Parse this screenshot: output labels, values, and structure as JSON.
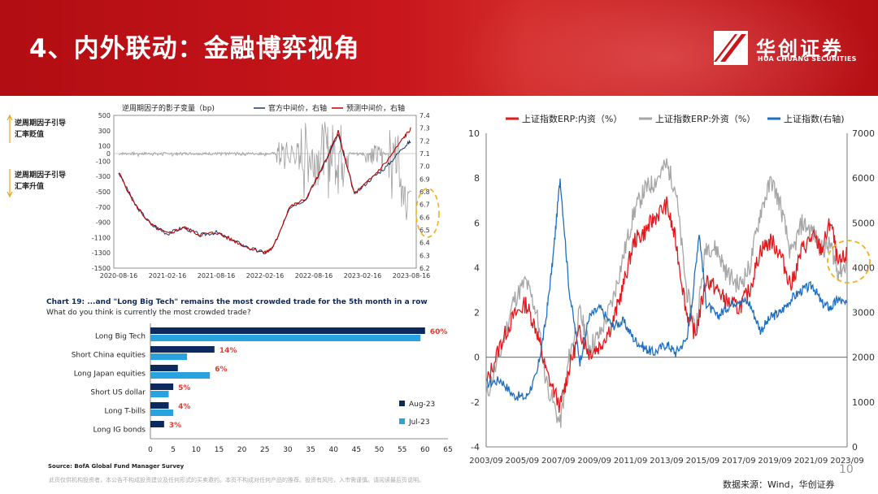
{
  "header": {
    "title": "4、内外联动：金融博弈视角",
    "logo_cn": "华创证券",
    "logo_en": "HUA CHUANG SECURITIES"
  },
  "page_number": "10",
  "disclaimer": "此页仅供机构投资者，本公告不构成投资建议及任何形式的买卖邀约。本页不构成对任何产品的推荐。投资有风险，入市需谨慎。请阅读最后页说明。",
  "chart1_side": {
    "up": "逆周期因子引导汇率贬值",
    "down": "逆周期因子引导汇率升值"
  },
  "chart_data": [
    {
      "type": "line",
      "legend": [
        "逆周期因子的影子变量（bp)",
        "官方中间价，右轴",
        "预测中间价，右轴"
      ],
      "x_ticks": [
        "2020-08-16",
        "2021-02-16",
        "2021-08-16",
        "2022-02-16",
        "2022-08-16",
        "2023-02-16",
        "2023-08-16"
      ],
      "y_left_ticks": [
        500,
        300,
        100,
        0,
        -100,
        -300,
        -500,
        -700,
        -900,
        -1100,
        -1300,
        -1500
      ],
      "y_right_ticks": [
        7.4,
        7.3,
        7.2,
        7.1,
        7.0,
        6.9,
        6.8,
        6.7,
        6.6,
        6.5,
        6.4,
        6.3,
        6.2
      ],
      "y_left_range": [
        -1500,
        500
      ],
      "y_right_range": [
        6.2,
        7.4
      ],
      "series": [
        {
          "name": "官方中间价，右轴",
          "color": "#1f3864",
          "x": [
            "2020-08",
            "2020-10",
            "2020-12",
            "2021-02",
            "2021-04",
            "2021-06",
            "2021-08",
            "2021-10",
            "2021-12",
            "2022-02",
            "2022-03",
            "2022-05",
            "2022-07",
            "2022-09",
            "2022-11",
            "2023-01",
            "2023-03",
            "2023-05",
            "2023-07",
            "2023-08"
          ],
          "values": [
            6.95,
            6.7,
            6.54,
            6.47,
            6.52,
            6.46,
            6.48,
            6.42,
            6.36,
            6.32,
            6.36,
            6.68,
            6.74,
            6.98,
            7.25,
            6.78,
            6.9,
            7.0,
            7.15,
            7.2
          ]
        },
        {
          "name": "预测中间价，右轴",
          "color": "#c00000",
          "x": [
            "2020-08",
            "2020-10",
            "2020-12",
            "2021-02",
            "2021-04",
            "2021-06",
            "2021-08",
            "2021-10",
            "2021-12",
            "2022-02",
            "2022-03",
            "2022-05",
            "2022-07",
            "2022-09",
            "2022-11",
            "2023-01",
            "2023-03",
            "2023-05",
            "2023-07",
            "2023-08"
          ],
          "values": [
            6.95,
            6.7,
            6.54,
            6.47,
            6.52,
            6.46,
            6.48,
            6.42,
            6.36,
            6.32,
            6.36,
            6.68,
            6.74,
            6.98,
            7.27,
            6.78,
            6.9,
            7.04,
            7.22,
            7.3
          ]
        }
      ]
    },
    {
      "type": "bar",
      "title": "Chart 19: ...and \"Long Big Tech\" remains the most crowded trade for the 5th month in a row",
      "subtitle": "What do you think is currently the most crowded trade?",
      "categories": [
        "Long Big Tech",
        "Short China equities",
        "Long Japan equities",
        "Short US dollar",
        "Long T-bills",
        "Long IG bonds"
      ],
      "series": [
        {
          "name": "Aug-23",
          "color": "#0d2a5e",
          "values": [
            60,
            14,
            6,
            5,
            4,
            3
          ]
        },
        {
          "name": "Jul-23",
          "color": "#29a3e0",
          "values": [
            59,
            8,
            13,
            4,
            5,
            0
          ]
        }
      ],
      "labels": [
        "60%",
        "14%",
        "6%",
        "5%",
        "4%",
        "3%"
      ],
      "x_ticks": [
        0,
        5,
        10,
        15,
        20,
        25,
        30,
        35,
        40,
        45,
        50,
        55,
        60,
        65
      ],
      "xlim": [
        0,
        65
      ],
      "source": "Source: BofA Global Fund Manager Survey"
    },
    {
      "type": "line",
      "x_ticks": [
        "2003/09",
        "2005/09",
        "2007/09",
        "2009/09",
        "2011/09",
        "2013/09",
        "2015/09",
        "2017/09",
        "2019/09",
        "2021/09",
        "2023/09"
      ],
      "y_left_ticks": [
        10,
        8,
        6,
        4,
        2,
        0,
        -2,
        -4
      ],
      "y_right_ticks": [
        7000,
        6000,
        5000,
        4000,
        3000,
        2000,
        1000,
        0
      ],
      "y_left_range": [
        -4,
        10
      ],
      "y_right_range": [
        0,
        7000
      ],
      "series": [
        {
          "name": "上证指数ERP:内资（%）",
          "color": "#e31a1c",
          "x": [
            2003.7,
            2004.5,
            2005.2,
            2005.9,
            2006.5,
            2007.0,
            2007.8,
            2008.3,
            2008.9,
            2009.4,
            2010.0,
            2010.7,
            2011.3,
            2011.9,
            2012.5,
            2013.0,
            2013.7,
            2014.2,
            2014.8,
            2015.3,
            2015.9,
            2016.5,
            2017.0,
            2017.7,
            2018.3,
            2018.9,
            2019.5,
            2020.0,
            2020.6,
            2021.2,
            2021.8,
            2022.3,
            2022.8,
            2023.2,
            2023.7
          ],
          "values": [
            -1.2,
            0.6,
            1.8,
            2.4,
            1.2,
            -0.6,
            -2.2,
            -0.5,
            1.2,
            0.2,
            0.5,
            1.5,
            3.2,
            5.2,
            5.6,
            6.2,
            6.8,
            5.2,
            2.0,
            1.0,
            3.5,
            3.0,
            2.5,
            2.2,
            3.0,
            4.8,
            5.2,
            4.6,
            3.2,
            4.8,
            5.4,
            4.8,
            6.1,
            4.1,
            4.6
          ]
        },
        {
          "name": "上证指数ERP:外资（%）",
          "color": "#a6a6a6",
          "x": [
            2003.7,
            2004.5,
            2005.2,
            2005.9,
            2006.5,
            2007.0,
            2007.8,
            2008.3,
            2008.9,
            2009.4,
            2010.0,
            2010.7,
            2011.3,
            2011.9,
            2012.5,
            2013.0,
            2013.7,
            2014.2,
            2014.8,
            2015.3,
            2015.9,
            2016.5,
            2017.0,
            2017.7,
            2018.3,
            2018.9,
            2019.5,
            2020.0,
            2020.6,
            2021.2,
            2021.8,
            2022.3,
            2022.8,
            2023.2,
            2023.7
          ],
          "values": [
            -1.8,
            0.2,
            2.5,
            3.4,
            2.0,
            -1.0,
            -3.0,
            0.0,
            2.0,
            0.5,
            1.0,
            2.5,
            4.5,
            6.5,
            7.5,
            7.8,
            8.6,
            7.5,
            3.0,
            1.2,
            5.0,
            4.8,
            3.8,
            3.2,
            4.0,
            6.5,
            7.9,
            6.8,
            4.5,
            6.0,
            5.6,
            4.8,
            5.0,
            3.8,
            4.2
          ]
        },
        {
          "name": "上证指数(右轴)",
          "color": "#1f6fc0",
          "x": [
            2003.7,
            2004.5,
            2005.2,
            2005.9,
            2006.5,
            2007.0,
            2007.4,
            2007.8,
            2008.3,
            2008.9,
            2009.4,
            2010.0,
            2010.7,
            2011.3,
            2011.9,
            2012.5,
            2013.0,
            2013.7,
            2014.2,
            2014.8,
            2015.1,
            2015.5,
            2015.9,
            2016.5,
            2017.0,
            2017.7,
            2018.3,
            2018.9,
            2019.5,
            2020.0,
            2020.6,
            2021.2,
            2021.8,
            2022.3,
            2022.8,
            2023.2,
            2023.7
          ],
          "values": [
            1400,
            1500,
            1150,
            1100,
            1600,
            2800,
            4200,
            6000,
            3500,
            1900,
            2900,
            3100,
            2700,
            2800,
            2400,
            2200,
            2100,
            2300,
            2100,
            2400,
            3200,
            4800,
            3200,
            2900,
            3100,
            3300,
            3200,
            2600,
            2900,
            3000,
            3300,
            3500,
            3600,
            3200,
            3100,
            3300,
            3150
          ]
        }
      ],
      "source": "数据来源：Wind，华创证券"
    }
  ]
}
